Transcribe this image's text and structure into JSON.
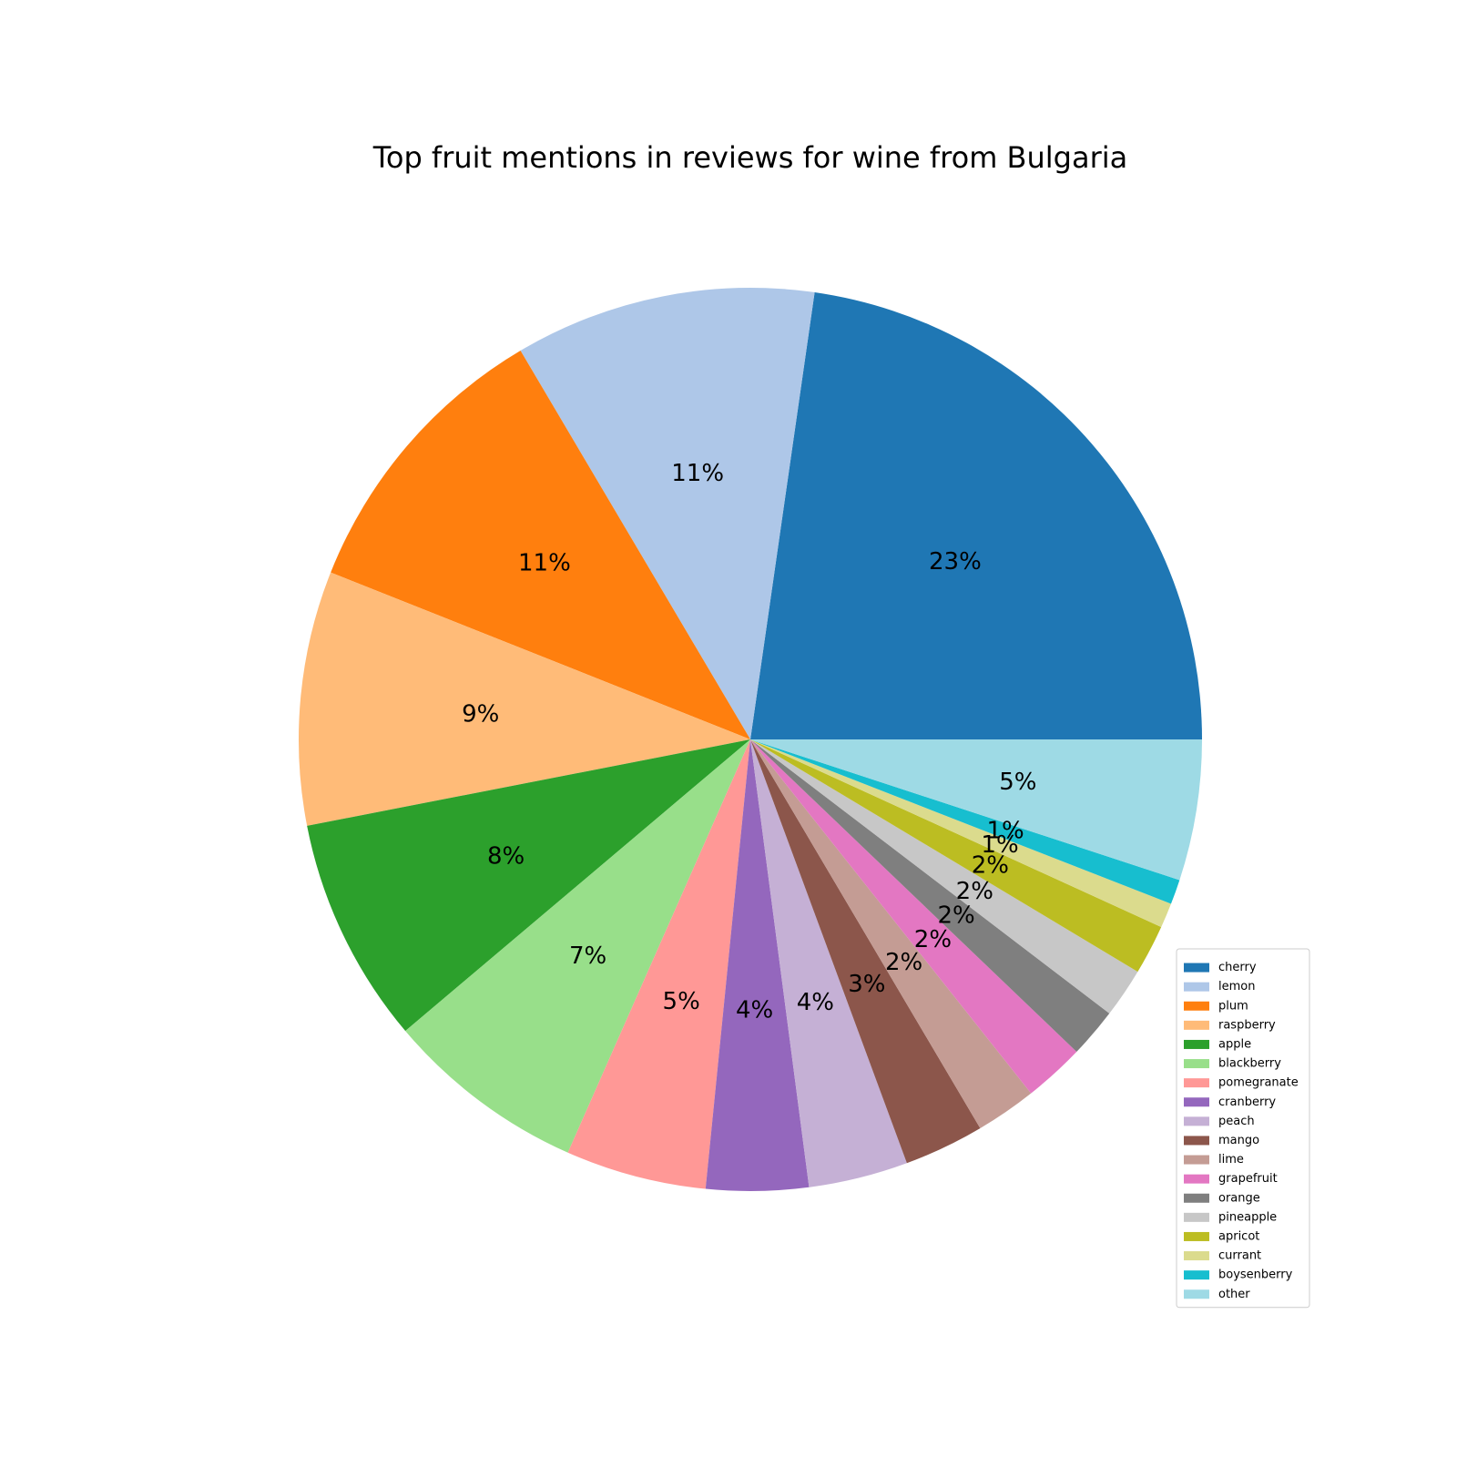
{
  "chart_data": {
    "type": "pie",
    "title": "Top fruit mentions in reviews for wine from Bulgaria",
    "legend_position": "lower-right",
    "start_angle_deg": 0,
    "direction": "counterclockwise",
    "slices": [
      {
        "label": "cherry",
        "value": 23.0,
        "pct_label": "23%",
        "color": "#1f77b4"
      },
      {
        "label": "lemon",
        "value": 10.9,
        "pct_label": "11%",
        "color": "#aec7e8"
      },
      {
        "label": "plum",
        "value": 10.6,
        "pct_label": "11%",
        "color": "#ff7f0e"
      },
      {
        "label": "raspberry",
        "value": 9.2,
        "pct_label": "9%",
        "color": "#ffbb78"
      },
      {
        "label": "apple",
        "value": 8.2,
        "pct_label": "8%",
        "color": "#2ca02c"
      },
      {
        "label": "blackberry",
        "value": 7.3,
        "pct_label": "7%",
        "color": "#98df8a"
      },
      {
        "label": "pomegranate",
        "value": 5.1,
        "pct_label": "5%",
        "color": "#ff9896"
      },
      {
        "label": "cranberry",
        "value": 3.7,
        "pct_label": "4%",
        "color": "#9467bd"
      },
      {
        "label": "peach",
        "value": 3.6,
        "pct_label": "4%",
        "color": "#c5b0d5"
      },
      {
        "label": "mango",
        "value": 2.9,
        "pct_label": "3%",
        "color": "#8c564b"
      },
      {
        "label": "lime",
        "value": 2.2,
        "pct_label": "2%",
        "color": "#c49c94"
      },
      {
        "label": "grapefruit",
        "value": 2.2,
        "pct_label": "2%",
        "color": "#e377c2"
      },
      {
        "label": "orange",
        "value": 1.8,
        "pct_label": "2%",
        "color": "#7f7f7f"
      },
      {
        "label": "pineapple",
        "value": 1.8,
        "pct_label": "2%",
        "color": "#c7c7c7"
      },
      {
        "label": "apricot",
        "value": 1.8,
        "pct_label": "2%",
        "color": "#bcbd22"
      },
      {
        "label": "currant",
        "value": 0.9,
        "pct_label": "1%",
        "color": "#dbdb8d"
      },
      {
        "label": "boysenberry",
        "value": 0.9,
        "pct_label": "1%",
        "color": "#17becf"
      },
      {
        "label": "other",
        "value": 5.1,
        "pct_label": "5%",
        "color": "#9edae5"
      }
    ]
  }
}
